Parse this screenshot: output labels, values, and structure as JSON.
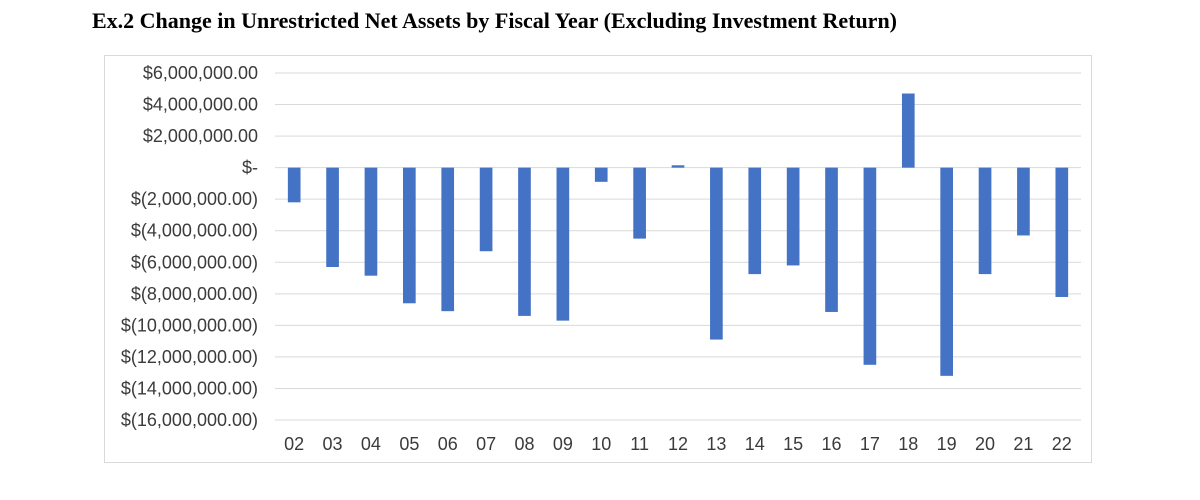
{
  "title": "Ex.2 Change in Unrestricted Net Assets by Fiscal Year (Excluding Investment Return)",
  "chart_data": {
    "type": "bar",
    "title": "Ex.2 Change in Unrestricted Net Assets by Fiscal Year (Excluding Investment Return)",
    "xlabel": "",
    "ylabel": "",
    "categories": [
      "02",
      "03",
      "04",
      "05",
      "06",
      "07",
      "08",
      "09",
      "10",
      "11",
      "12",
      "13",
      "14",
      "15",
      "16",
      "17",
      "18",
      "19",
      "20",
      "21",
      "22"
    ],
    "series": [
      {
        "values": [
          -2200000,
          -6300000,
          -6850000,
          -8600000,
          -9100000,
          -5300000,
          -9400000,
          -9700000,
          -900000,
          -4500000,
          150000,
          -10900000,
          -6750000,
          -6200000,
          -9150000,
          -12500000,
          4700000,
          -13200000,
          -6750000,
          -4300000,
          -8200000
        ],
        "color": "#4472c4"
      }
    ],
    "ylim": [
      -16000000,
      6000000
    ],
    "yticks": [
      6000000,
      4000000,
      2000000,
      0,
      -2000000,
      -4000000,
      -6000000,
      -8000000,
      -10000000,
      -12000000,
      -14000000,
      -16000000
    ],
    "ytick_labels": [
      "$6,000,000.00",
      "$4,000,000.00",
      "$2,000,000.00",
      "$-",
      "$(2,000,000.00)",
      "$(4,000,000.00)",
      "$(6,000,000.00)",
      "$(8,000,000.00)",
      "$(10,000,000.00)",
      "$(12,000,000.00)",
      "$(14,000,000.00)",
      "$(16,000,000.00)"
    ],
    "grid": true,
    "legend": "none",
    "colors": {
      "bar": "#4472c4",
      "grid": "#d9d9d9",
      "axis_text": "#3b3b3b"
    }
  }
}
